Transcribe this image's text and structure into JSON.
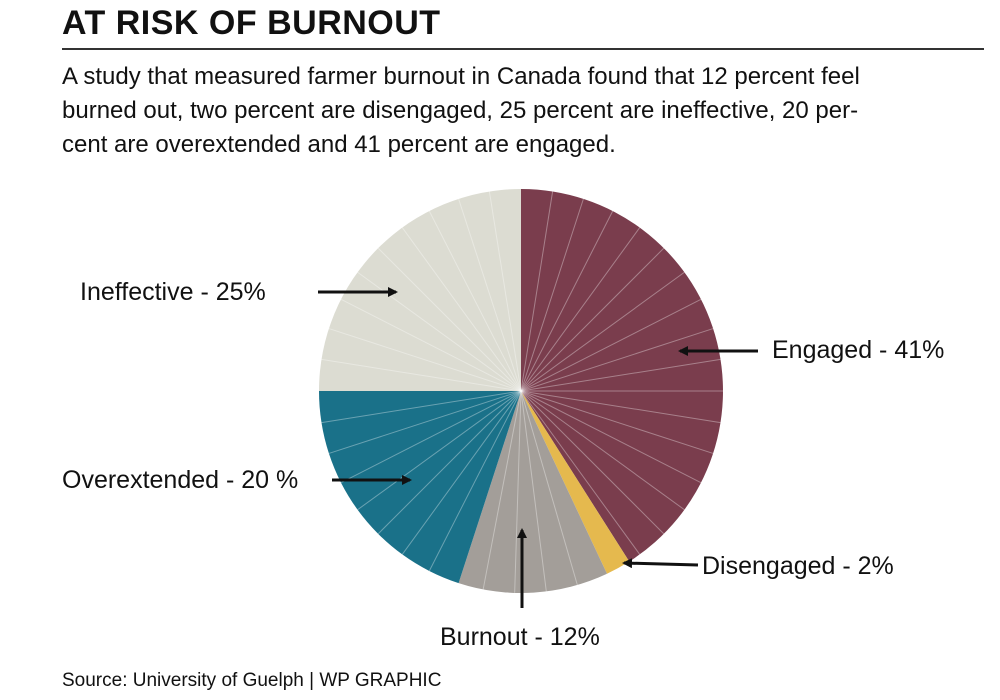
{
  "title": "AT RISK OF BURNOUT",
  "subtitle_lines": [
    "A study that measured farmer burnout in Canada found that 12 percent feel",
    "burned out, two percent are disengaged, 25 percent are ineffective, 20 per-",
    "cent are overextended and 41 percent are engaged."
  ],
  "source": "Source: University of Guelph  |  WP GRAPHIC",
  "chart_data": {
    "type": "pie",
    "title": "AT RISK OF BURNOUT",
    "slices": [
      {
        "name": "Engaged",
        "value": 41,
        "label": "Engaged - 41%",
        "color": "#7a3d4d"
      },
      {
        "name": "Disengaged",
        "value": 2,
        "label": "Disengaged - 2%",
        "color": "#e5b94e"
      },
      {
        "name": "Burnout",
        "value": 12,
        "label": "Burnout - 12%",
        "color": "#a39e99"
      },
      {
        "name": "Overextended",
        "value": 20,
        "label": "Overextended - 20 %",
        "color": "#1a7189"
      },
      {
        "name": "Ineffective",
        "value": 25,
        "label": "Ineffective - 25%",
        "color": "#dcdcd2"
      }
    ],
    "start": "12 o'clock, clockwise",
    "legend": "none"
  }
}
